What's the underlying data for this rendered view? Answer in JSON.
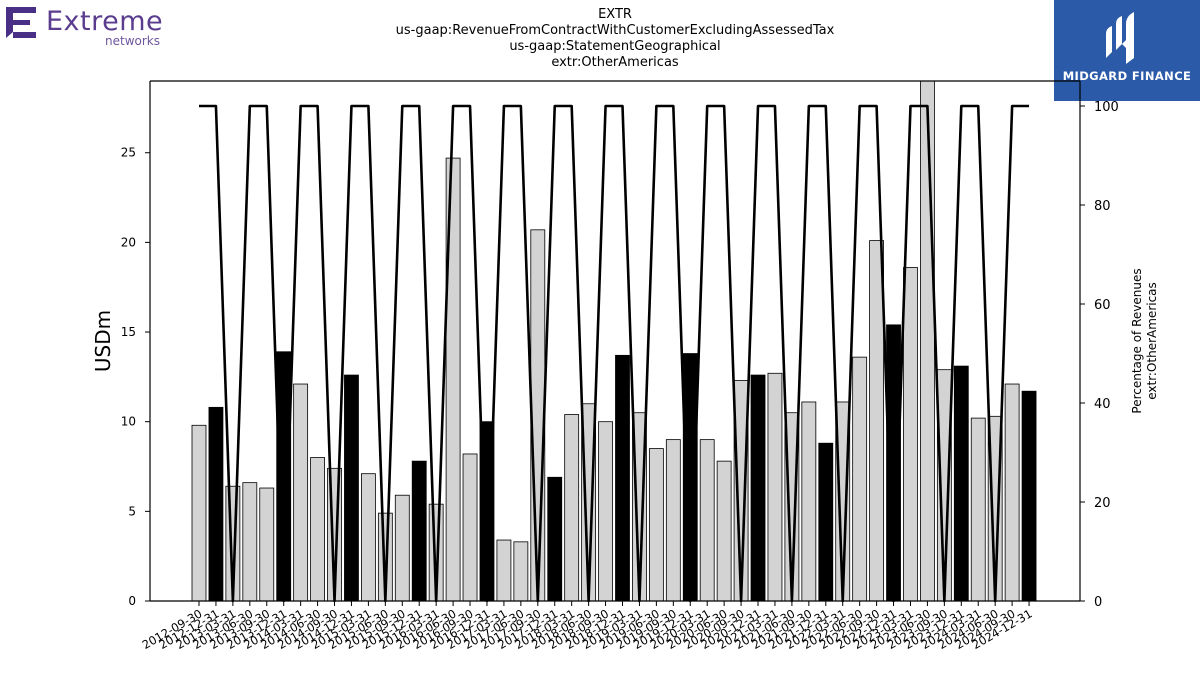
{
  "header": {
    "company_logo_word": "Extreme",
    "company_logo_sub": "networks",
    "title_lines": [
      "EXTR",
      "us-gaap:RevenueFromContractWithCustomerExcludingAssessedTax",
      "us-gaap:StatementGeographical",
      "extr:OtherAmericas"
    ],
    "brand_text": "MIDGARD FINANCE"
  },
  "colors": {
    "bar_fill_default": "#d3d3d3",
    "bar_fill_highlight": "#000000",
    "bar_stroke": "#000000",
    "line": "#000000",
    "logo_purple": "#5b3d8f",
    "brand_blue": "#2b5aa8"
  },
  "chart_data": {
    "type": "bar",
    "ylabel": "USDm",
    "y2label_lines": [
      "Percentage of Revenues",
      "extr:OtherAmericas"
    ],
    "ylim": [
      0,
      29
    ],
    "y2lim": [
      0,
      100
    ],
    "yticks": [
      0,
      5,
      10,
      15,
      20,
      25
    ],
    "y2ticks": [
      0,
      20,
      40,
      60,
      80,
      100
    ],
    "grid": false,
    "categories": [
      "2012-09-30",
      "2012-12-31",
      "2013-03-31",
      "2013-06-30",
      "2013-09-30",
      "2013-12-31",
      "2014-03-31",
      "2014-06-30",
      "2014-09-30",
      "2014-12-31",
      "2015-03-31",
      "2015-06-30",
      "2015-09-30",
      "2015-12-31",
      "2016-03-31",
      "2016-06-30",
      "2016-09-30",
      "2016-12-31",
      "2017-03-31",
      "2017-06-30",
      "2017-09-30",
      "2017-12-31",
      "2018-03-31",
      "2018-06-30",
      "2018-09-30",
      "2018-12-31",
      "2019-03-31",
      "2019-06-30",
      "2019-09-30",
      "2019-12-31",
      "2020-03-31",
      "2020-06-30",
      "2020-09-30",
      "2020-12-31",
      "2021-03-31",
      "2021-06-30",
      "2021-09-30",
      "2021-12-31",
      "2022-03-31",
      "2022-06-30",
      "2022-09-30",
      "2022-12-31",
      "2023-03-31",
      "2023-06-30",
      "2023-09-30",
      "2023-12-31",
      "2024-03-31",
      "2024-06-30",
      "2024-09-30",
      "2024-12-31"
    ],
    "xtick_labels": [
      "2012-09-30",
      "2012-12-31",
      "2013-03-31",
      "2013-06-30",
      "2013-09-30",
      "2013-12-31",
      "2014-03-31",
      "2014-06-30",
      "2014-09-30",
      "2014-12-31",
      "2015-03-31",
      "2015-06-30",
      "2015-09-30",
      "2015-12-31",
      "2016-03-31",
      "2016-06-30",
      "2016-09-30",
      "2016-12-31",
      "2017-03-31",
      "2017-06-30",
      "2017-09-30",
      "2017-12-31",
      "2018-03-31",
      "2018-06-30",
      "2018-09-30",
      "2018-12-31",
      "2019-03-31",
      "2019-06-30",
      "2019-09-30",
      "2019-12-31",
      "2020-03-31",
      "2020-06-30",
      "2020-09-30",
      "2020-12-31",
      "2021-03-31",
      "2021-06-30",
      "2021-09-30",
      "2021-12-31",
      "2022-03-31",
      "2022-06-30",
      "2022-09-30",
      "2022-12-31",
      "2023-03-31",
      "2023-06-30",
      "2023-09-30",
      "2023-12-31",
      "2024-03-31",
      "2024-06-30",
      "2024-09-30",
      "2024-12-31"
    ],
    "values": [
      9.8,
      10.8,
      6.4,
      6.6,
      6.3,
      13.9,
      12.1,
      8.0,
      7.4,
      12.6,
      7.1,
      4.9,
      5.9,
      7.8,
      5.4,
      24.7,
      8.2,
      10.0,
      3.4,
      3.3,
      20.7,
      6.9,
      10.4,
      11.0,
      10.0,
      13.7,
      10.5,
      8.5,
      9.0,
      13.8,
      9.0,
      7.8,
      12.3,
      12.6,
      12.7,
      10.5,
      11.1,
      8.8,
      11.1,
      13.6,
      20.1,
      15.4,
      18.6,
      29.0,
      12.9,
      13.1,
      10.2,
      10.3,
      12.1,
      11.7
    ],
    "highlight": [
      false,
      true,
      false,
      false,
      false,
      true,
      false,
      false,
      false,
      true,
      false,
      false,
      false,
      true,
      false,
      false,
      false,
      true,
      false,
      false,
      false,
      true,
      false,
      false,
      false,
      true,
      false,
      false,
      false,
      true,
      false,
      false,
      false,
      true,
      false,
      false,
      false,
      true,
      false,
      false,
      false,
      true,
      false,
      false,
      false,
      true,
      false,
      false,
      false,
      true
    ],
    "percentage_series": {
      "name": "Percentage of Revenues",
      "values": [
        100,
        100,
        0,
        100,
        100,
        0,
        100,
        100,
        0,
        100,
        100,
        0,
        100,
        100,
        0,
        100,
        100,
        0,
        100,
        100,
        0,
        100,
        100,
        0,
        100,
        100,
        0,
        100,
        100,
        0,
        100,
        100,
        0,
        100,
        100,
        0,
        100,
        100,
        0,
        100,
        100,
        0,
        100,
        100,
        0,
        100,
        100,
        0,
        100,
        100
      ]
    }
  }
}
